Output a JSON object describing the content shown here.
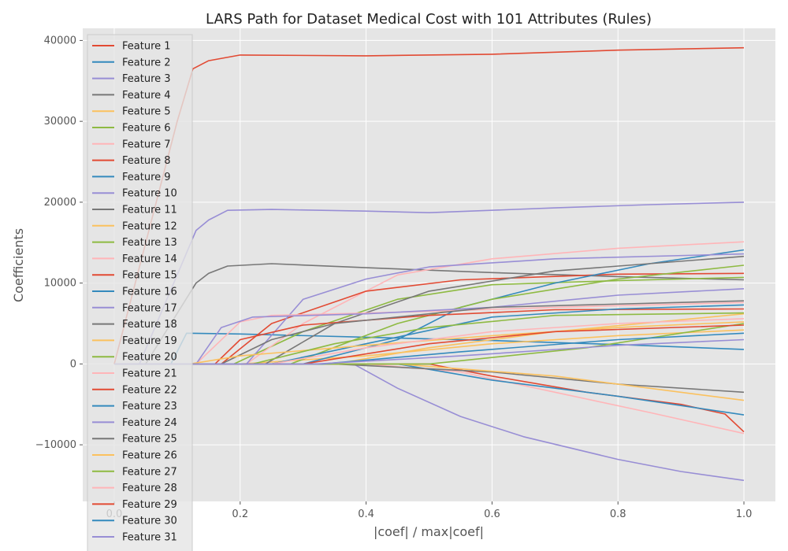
{
  "chart_data": {
    "type": "line",
    "title": "LARS Path for Dataset Medical Cost with 101 Attributes (Rules)",
    "xlabel": "|coef| / max|coef|",
    "ylabel": "Coefficients",
    "xlim": [
      -0.05,
      1.05
    ],
    "ylim": [
      -17000,
      41500
    ],
    "xticks": [
      0.0,
      0.2,
      0.4,
      0.6,
      0.8,
      1.0
    ],
    "xtick_labels": [
      "0.0",
      "0.2",
      "0.4",
      "0.6",
      "0.8",
      "1.0"
    ],
    "yticks": [
      -10000,
      0,
      10000,
      20000,
      30000,
      40000
    ],
    "ytick_labels": [
      "−10000",
      "0",
      "10000",
      "20000",
      "30000",
      "40000"
    ],
    "grid": true,
    "legend_position": "top-left",
    "series": [
      {
        "name": "Feature 1",
        "color": "#E24A33",
        "points": [
          [
            0.0,
            0
          ],
          [
            0.1,
            30000
          ],
          [
            0.125,
            36500
          ],
          [
            0.15,
            37500
          ],
          [
            0.2,
            38200
          ],
          [
            0.4,
            38100
          ],
          [
            0.6,
            38300
          ],
          [
            0.8,
            38800
          ],
          [
            1.0,
            39100
          ]
        ]
      },
      {
        "name": "Feature 2",
        "color": "#348ABD",
        "points": [
          [
            0.0,
            0
          ],
          [
            0.09,
            0
          ],
          [
            0.115,
            3800
          ],
          [
            0.2,
            3700
          ],
          [
            0.4,
            3300
          ],
          [
            0.6,
            2900
          ],
          [
            0.8,
            2400
          ],
          [
            1.0,
            1800
          ]
        ]
      },
      {
        "name": "Feature 3",
        "color": "#988ED5",
        "points": [
          [
            0.0,
            0
          ],
          [
            0.04,
            0
          ],
          [
            0.13,
            16500
          ],
          [
            0.15,
            17800
          ],
          [
            0.18,
            19000
          ],
          [
            0.25,
            19100
          ],
          [
            0.4,
            18900
          ],
          [
            0.5,
            18700
          ],
          [
            0.7,
            19300
          ],
          [
            0.85,
            19700
          ],
          [
            1.0,
            20000
          ]
        ]
      },
      {
        "name": "Feature 4",
        "color": "#777777",
        "points": [
          [
            0.0,
            0
          ],
          [
            0.05,
            0
          ],
          [
            0.13,
            10000
          ],
          [
            0.15,
            11200
          ],
          [
            0.18,
            12100
          ],
          [
            0.25,
            12400
          ],
          [
            0.4,
            11900
          ],
          [
            0.6,
            11300
          ],
          [
            0.8,
            10800
          ],
          [
            1.0,
            10400
          ]
        ]
      },
      {
        "name": "Feature 5",
        "color": "#FBC15E",
        "points": [
          [
            0.0,
            0
          ],
          [
            0.2,
            0
          ],
          [
            0.4,
            1000
          ],
          [
            0.6,
            2500
          ],
          [
            0.8,
            3500
          ],
          [
            1.0,
            4200
          ]
        ]
      },
      {
        "name": "Feature 6",
        "color": "#8EBA42",
        "points": [
          [
            0.0,
            0
          ],
          [
            0.19,
            0
          ],
          [
            0.3,
            4000
          ],
          [
            0.45,
            8000
          ],
          [
            0.6,
            9800
          ],
          [
            0.8,
            10300
          ],
          [
            1.0,
            10700
          ]
        ]
      },
      {
        "name": "Feature 7",
        "color": "#FFB5B8",
        "points": [
          [
            0.0,
            0
          ],
          [
            0.21,
            0
          ],
          [
            0.3,
            5000
          ],
          [
            0.45,
            11000
          ],
          [
            0.6,
            13000
          ],
          [
            0.8,
            14300
          ],
          [
            1.0,
            15100
          ]
        ]
      },
      {
        "name": "Feature 8",
        "color": "#E24A33",
        "points": [
          [
            0.0,
            0
          ],
          [
            0.17,
            0
          ],
          [
            0.25,
            5000
          ],
          [
            0.4,
            9000
          ],
          [
            0.55,
            10400
          ],
          [
            0.8,
            11100
          ],
          [
            1.0,
            11200
          ]
        ]
      },
      {
        "name": "Feature 9",
        "color": "#348ABD",
        "points": [
          [
            0.0,
            0
          ],
          [
            0.3,
            0
          ],
          [
            0.45,
            3000
          ],
          [
            0.55,
            7000
          ],
          [
            0.7,
            10000
          ],
          [
            0.85,
            12400
          ],
          [
            1.0,
            14100
          ]
        ]
      },
      {
        "name": "Feature 10",
        "color": "#988ED5",
        "points": [
          [
            0.0,
            0
          ],
          [
            0.21,
            0
          ],
          [
            0.3,
            8000
          ],
          [
            0.4,
            10500
          ],
          [
            0.5,
            12000
          ],
          [
            0.7,
            13000
          ],
          [
            1.0,
            13600
          ]
        ]
      },
      {
        "name": "Feature 11",
        "color": "#777777",
        "points": [
          [
            0.0,
            0
          ],
          [
            0.24,
            0
          ],
          [
            0.35,
            5000
          ],
          [
            0.5,
            9000
          ],
          [
            0.7,
            11500
          ],
          [
            1.0,
            13300
          ]
        ]
      },
      {
        "name": "Feature 12",
        "color": "#FBC15E",
        "points": [
          [
            0.0,
            0
          ],
          [
            0.35,
            0
          ],
          [
            0.5,
            2000
          ],
          [
            0.7,
            4000
          ],
          [
            1.0,
            6200
          ]
        ]
      },
      {
        "name": "Feature 13",
        "color": "#8EBA42",
        "points": [
          [
            0.0,
            0
          ],
          [
            0.28,
            0
          ],
          [
            0.45,
            5000
          ],
          [
            0.6,
            8000
          ],
          [
            0.8,
            10500
          ],
          [
            1.0,
            12200
          ]
        ]
      },
      {
        "name": "Feature 14",
        "color": "#FFB5B8",
        "points": [
          [
            0.0,
            0
          ],
          [
            0.4,
            0
          ],
          [
            0.55,
            -1000
          ],
          [
            0.7,
            -3500
          ],
          [
            0.85,
            -6000
          ],
          [
            1.0,
            -8600
          ]
        ]
      },
      {
        "name": "Feature 15",
        "color": "#E24A33",
        "points": [
          [
            0.0,
            0
          ],
          [
            0.5,
            0
          ],
          [
            0.6,
            -1500
          ],
          [
            0.75,
            -3500
          ],
          [
            0.9,
            -5000
          ],
          [
            0.97,
            -6200
          ],
          [
            1.0,
            -8400
          ]
        ]
      },
      {
        "name": "Feature 16",
        "color": "#348ABD",
        "points": [
          [
            0.0,
            0
          ],
          [
            0.45,
            0
          ],
          [
            0.6,
            -2000
          ],
          [
            0.8,
            -4000
          ],
          [
            1.0,
            -6300
          ]
        ]
      },
      {
        "name": "Feature 17",
        "color": "#988ED5",
        "points": [
          [
            0.0,
            0
          ],
          [
            0.38,
            0
          ],
          [
            0.45,
            -3000
          ],
          [
            0.55,
            -6500
          ],
          [
            0.65,
            -9000
          ],
          [
            0.8,
            -11800
          ],
          [
            0.9,
            -13300
          ],
          [
            1.0,
            -14400
          ]
        ]
      },
      {
        "name": "Feature 18",
        "color": "#777777",
        "points": [
          [
            0.0,
            0
          ],
          [
            0.35,
            0
          ],
          [
            0.6,
            -1000
          ],
          [
            0.8,
            -2500
          ],
          [
            1.0,
            -3500
          ]
        ]
      },
      {
        "name": "Feature 19",
        "color": "#FBC15E",
        "points": [
          [
            0.0,
            0
          ],
          [
            0.45,
            0
          ],
          [
            0.7,
            -1500
          ],
          [
            1.0,
            -4500
          ]
        ]
      },
      {
        "name": "Feature 20",
        "color": "#8EBA42",
        "points": [
          [
            0.0,
            0
          ],
          [
            0.5,
            0
          ],
          [
            0.75,
            2000
          ],
          [
            1.0,
            5000
          ]
        ]
      },
      {
        "name": "Feature 21",
        "color": "#FFB5B8",
        "points": [
          [
            0.0,
            0
          ],
          [
            0.13,
            0
          ],
          [
            0.2,
            5200
          ],
          [
            0.25,
            6000
          ],
          [
            0.5,
            6500
          ],
          [
            0.7,
            7000
          ],
          [
            1.0,
            7600
          ]
        ]
      },
      {
        "name": "Feature 22",
        "color": "#E24A33",
        "points": [
          [
            0.0,
            0
          ],
          [
            0.16,
            0
          ],
          [
            0.2,
            3000
          ],
          [
            0.3,
            4800
          ],
          [
            0.5,
            6000
          ],
          [
            0.7,
            6700
          ],
          [
            1.0,
            6800
          ]
        ]
      },
      {
        "name": "Feature 23",
        "color": "#348ABD",
        "points": [
          [
            0.0,
            0
          ],
          [
            0.25,
            0
          ],
          [
            0.4,
            2500
          ],
          [
            0.6,
            5800
          ],
          [
            0.8,
            6800
          ],
          [
            1.0,
            7300
          ]
        ]
      },
      {
        "name": "Feature 24",
        "color": "#988ED5",
        "points": [
          [
            0.0,
            0
          ],
          [
            0.13,
            0
          ],
          [
            0.17,
            4500
          ],
          [
            0.22,
            5800
          ],
          [
            0.4,
            6200
          ],
          [
            0.6,
            7000
          ],
          [
            0.8,
            8500
          ],
          [
            1.0,
            9300
          ]
        ]
      },
      {
        "name": "Feature 25",
        "color": "#777777",
        "points": [
          [
            0.0,
            0
          ],
          [
            0.17,
            0
          ],
          [
            0.25,
            3000
          ],
          [
            0.35,
            5000
          ],
          [
            0.6,
            7000
          ],
          [
            1.0,
            7800
          ]
        ]
      },
      {
        "name": "Feature 26",
        "color": "#FBC15E",
        "points": [
          [
            0.0,
            0
          ],
          [
            0.12,
            0
          ],
          [
            0.2,
            1000
          ],
          [
            0.4,
            2300
          ],
          [
            0.6,
            3500
          ],
          [
            0.8,
            4500
          ],
          [
            1.0,
            5200
          ]
        ]
      },
      {
        "name": "Feature 27",
        "color": "#8EBA42",
        "points": [
          [
            0.0,
            0
          ],
          [
            0.22,
            0
          ],
          [
            0.35,
            2500
          ],
          [
            0.5,
            4500
          ],
          [
            0.7,
            6000
          ],
          [
            1.0,
            6300
          ]
        ]
      },
      {
        "name": "Feature 28",
        "color": "#FFB5B8",
        "points": [
          [
            0.0,
            0
          ],
          [
            0.25,
            0
          ],
          [
            0.4,
            2000
          ],
          [
            0.6,
            4000
          ],
          [
            0.8,
            5000
          ],
          [
            1.0,
            5600
          ]
        ]
      },
      {
        "name": "Feature 29",
        "color": "#E24A33",
        "points": [
          [
            0.0,
            0
          ],
          [
            0.3,
            0
          ],
          [
            0.5,
            2500
          ],
          [
            0.7,
            4000
          ],
          [
            1.0,
            4800
          ]
        ]
      },
      {
        "name": "Feature 30",
        "color": "#348ABD",
        "points": [
          [
            0.0,
            0
          ],
          [
            0.33,
            0
          ],
          [
            0.55,
            1500
          ],
          [
            0.8,
            3000
          ],
          [
            1.0,
            3800
          ]
        ]
      },
      {
        "name": "Feature 31",
        "color": "#988ED5",
        "points": [
          [
            0.0,
            0
          ],
          [
            0.32,
            0
          ],
          [
            0.55,
            1000
          ],
          [
            0.8,
            2300
          ],
          [
            1.0,
            3000
          ]
        ]
      }
    ]
  }
}
